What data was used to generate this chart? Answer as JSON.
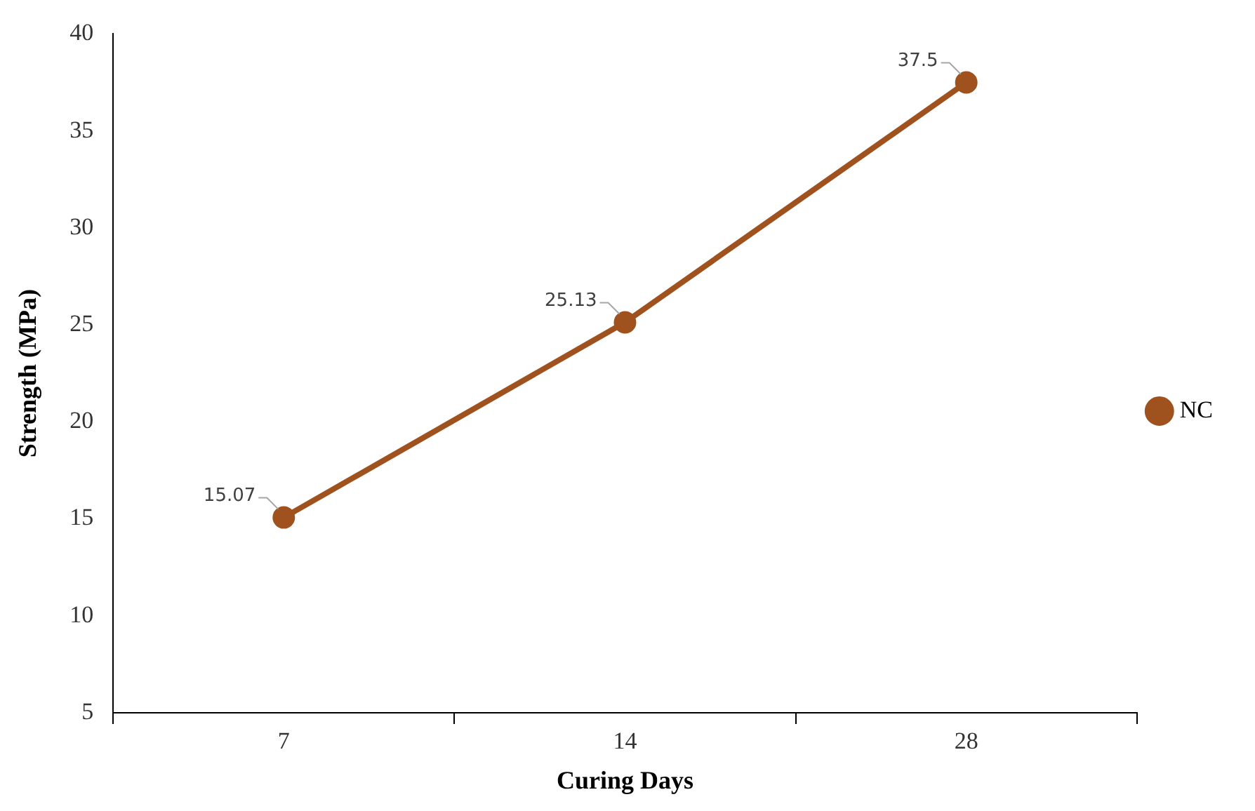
{
  "chart_data": {
    "type": "line",
    "xlabel": "Curing Days",
    "ylabel": "Strength (MPa)",
    "categories": [
      "7",
      "14",
      "28"
    ],
    "series": [
      {
        "name": "NC",
        "color": "#a0521e",
        "values": [
          15.07,
          25.13,
          37.5
        ]
      }
    ],
    "ylim": [
      5,
      40
    ],
    "yticks": [
      5,
      10,
      15,
      20,
      25,
      30,
      35,
      40
    ],
    "grid": false,
    "legend": "right",
    "marker": "circle",
    "line_style": "solid",
    "data_labels": true
  }
}
